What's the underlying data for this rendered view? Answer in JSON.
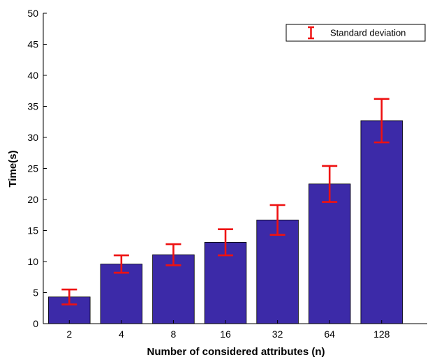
{
  "chart_data": {
    "type": "bar",
    "title": "",
    "xlabel": "Number of considered attributes (n)",
    "ylabel": "Time(s)",
    "categories": [
      "2",
      "4",
      "8",
      "16",
      "32",
      "64",
      "128"
    ],
    "values": [
      4.3,
      9.6,
      11.1,
      13.1,
      16.7,
      22.5,
      32.7
    ],
    "error": [
      1.2,
      1.4,
      1.7,
      2.1,
      2.4,
      2.9,
      3.5
    ],
    "ylim": [
      0,
      50
    ],
    "yticks": [
      0,
      5,
      10,
      15,
      20,
      25,
      30,
      35,
      40,
      45,
      50
    ],
    "grid": false,
    "legend": {
      "position": "top-right",
      "entries": [
        "Standard deviation"
      ]
    },
    "colors": {
      "bar": "#3c2aa8",
      "bar_edge": "#000000",
      "error": "#ee1111",
      "axis": "#000000"
    }
  }
}
